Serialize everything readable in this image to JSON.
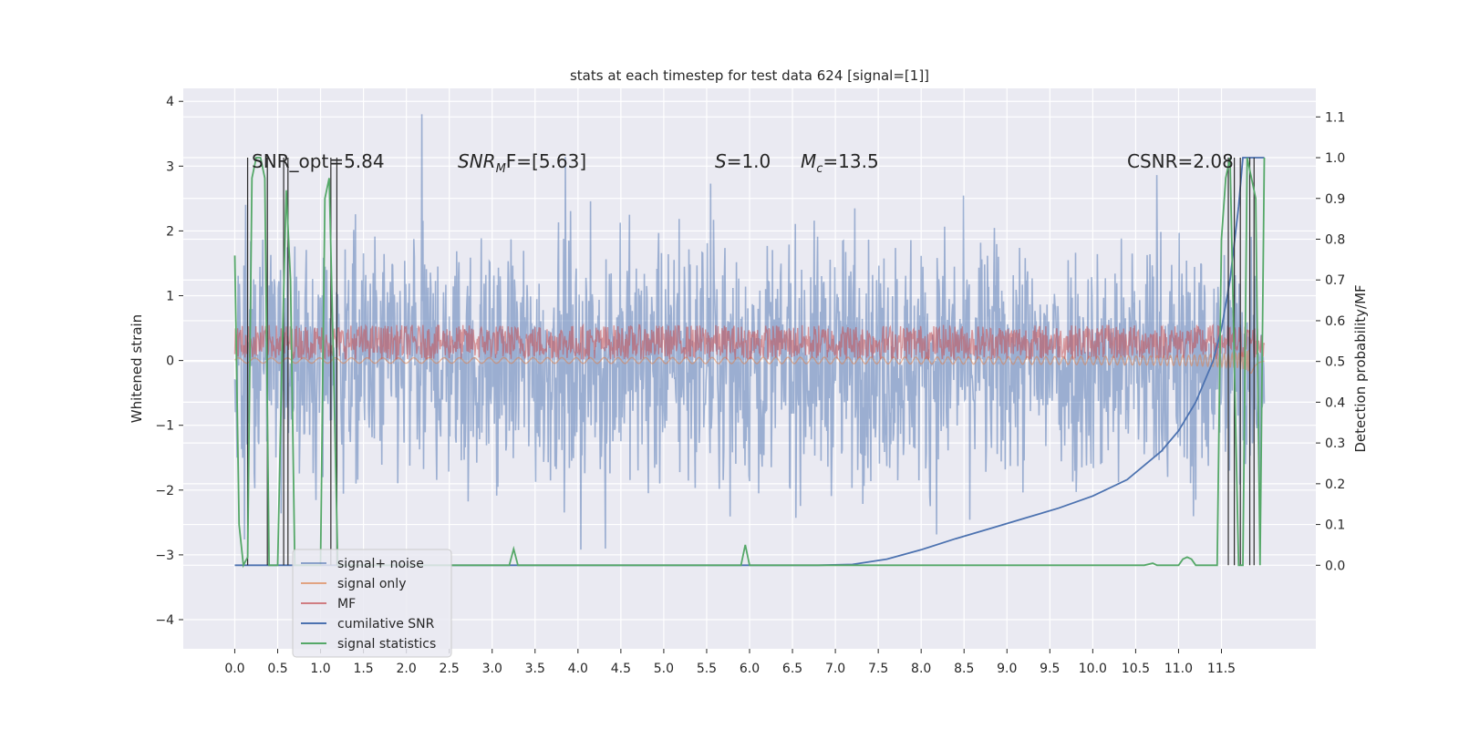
{
  "chart_data": {
    "type": "line",
    "title": "stats at each timestep for test data 624 [signal=[1]]",
    "xlabel": "",
    "ylabel": "Whitened strain",
    "y2label": "Detection probability/MF",
    "xlim": [
      -0.6,
      12.6
    ],
    "ylim": [
      -4.45,
      4.2
    ],
    "y2lim": [
      -0.205,
      1.17
    ],
    "x_ticks": [
      "0.0",
      "0.5",
      "1.0",
      "1.5",
      "2.0",
      "2.5",
      "3.0",
      "3.5",
      "4.0",
      "4.5",
      "5.0",
      "5.5",
      "6.0",
      "6.5",
      "7.0",
      "7.5",
      "8.0",
      "8.5",
      "9.0",
      "9.5",
      "10.0",
      "10.5",
      "11.0",
      "11.5"
    ],
    "y_ticks": [
      "4",
      "3",
      "2",
      "1",
      "0",
      "−1",
      "−2",
      "−3",
      "−4"
    ],
    "y2_ticks": [
      "1.1",
      "1.0",
      "0.9",
      "0.8",
      "0.7",
      "0.6",
      "0.5",
      "0.4",
      "0.3",
      "0.2",
      "0.1",
      "0.0"
    ],
    "grid": true,
    "legend_position": "lower-left",
    "annotations": {
      "snr_opt": "SNR_opt=5.84",
      "snr_mf_base": "SNR",
      "snr_mf_sub": "M",
      "snr_mf_rest": "F=[5.63]",
      "s_sym": "S",
      "s_val": "=1.0",
      "mc_sym": "M",
      "mc_sub": "c",
      "mc_val": "=13.5",
      "csnr": "CSNR=2.08"
    },
    "series": [
      {
        "name": "signal+ noise",
        "color": "#4c72b0",
        "axis": "left",
        "style": "noise band, roughly ±2 with spikes to ±3.7",
        "x": [
          0,
          12
        ],
        "y_min": -3.6,
        "y_max": 3.8
      },
      {
        "name": "signal only",
        "color": "#dd8452",
        "axis": "left",
        "style": "near zero, growing chirp near merger around 11.8",
        "x": [
          0,
          12
        ],
        "y_min": -0.6,
        "y_max": 1.0
      },
      {
        "name": "MF",
        "color": "#c44e52",
        "axis": "right",
        "style": "band between about 0.52 and 0.58",
        "x": [
          0,
          12
        ],
        "y_min": 0.5,
        "y_max": 0.59
      },
      {
        "name": "cumilative SNR",
        "color": "#4c72b0",
        "axis": "right",
        "x": [
          0,
          6.8,
          7.2,
          7.6,
          8.0,
          8.4,
          8.8,
          9.2,
          9.6,
          10.0,
          10.4,
          10.8,
          11.0,
          11.2,
          11.4,
          11.5,
          11.6,
          11.7,
          11.75,
          12.0
        ],
        "y": [
          0.0,
          0.0,
          0.002,
          0.015,
          0.038,
          0.065,
          0.09,
          0.115,
          0.14,
          0.17,
          0.21,
          0.28,
          0.33,
          0.4,
          0.5,
          0.58,
          0.7,
          0.88,
          1.0,
          1.0
        ]
      },
      {
        "name": "signal statistics",
        "color": "#55a868",
        "axis": "right",
        "x": [
          0.0,
          0.05,
          0.1,
          0.15,
          0.2,
          0.25,
          0.3,
          0.35,
          0.4,
          0.45,
          0.5,
          0.55,
          0.6,
          0.65,
          0.7,
          0.75,
          0.8,
          1.0,
          1.05,
          1.1,
          1.15,
          1.2,
          1.3,
          3.2,
          3.25,
          3.3,
          3.4,
          5.9,
          5.95,
          6.0,
          6.1,
          10.6,
          10.7,
          10.75,
          10.8,
          10.9,
          11.0,
          11.05,
          11.1,
          11.15,
          11.2,
          11.45,
          11.5,
          11.55,
          11.6,
          11.7,
          11.75,
          11.8,
          11.9,
          11.95,
          12.0
        ],
        "y": [
          0.76,
          0.1,
          0.0,
          0.02,
          0.95,
          1.0,
          1.0,
          0.95,
          0.0,
          0.0,
          0.0,
          0.5,
          0.92,
          0.7,
          0.0,
          0.0,
          0.0,
          0.0,
          0.9,
          0.95,
          0.5,
          0.0,
          0.0,
          0.0,
          0.04,
          0.0,
          0.0,
          0.0,
          0.05,
          0.0,
          0.0,
          0.0,
          0.005,
          0.0,
          0.0,
          0.0,
          0.0,
          0.015,
          0.02,
          0.015,
          0.0,
          0.0,
          0.8,
          0.95,
          1.0,
          0.0,
          0.0,
          1.0,
          0.9,
          0.0,
          1.0
        ]
      }
    ]
  }
}
